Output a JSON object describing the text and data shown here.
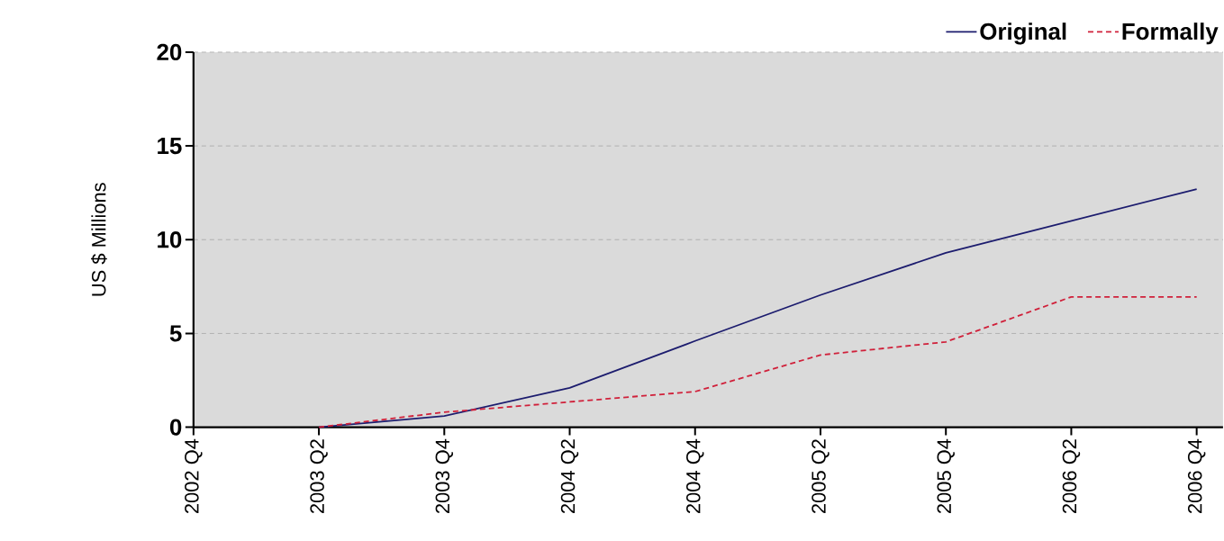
{
  "chart_data": {
    "type": "line",
    "ylabel": "US $ Millions",
    "categories": [
      "2002 Q4",
      "2003 Q2",
      "2003 Q4",
      "2004 Q2",
      "2004 Q4",
      "2005 Q2",
      "2005 Q4",
      "2006 Q2",
      "2006 Q4"
    ],
    "series": [
      {
        "name": "Original",
        "color": "#1c1c6e",
        "line_style": "solid",
        "values": [
          null,
          0,
          0.6,
          2.1,
          4.6,
          7.05,
          9.3,
          11.0,
          12.7
        ]
      },
      {
        "name": "Formally",
        "color": "#d0203a",
        "line_style": "dashed",
        "values": [
          null,
          0,
          0.8,
          1.35,
          1.9,
          3.85,
          4.55,
          6.95,
          6.95
        ]
      }
    ],
    "ylim": [
      0,
      20
    ],
    "yticks": [
      0,
      5,
      10,
      15,
      20
    ],
    "grid": "y",
    "legend": "top right",
    "marker": "none"
  }
}
